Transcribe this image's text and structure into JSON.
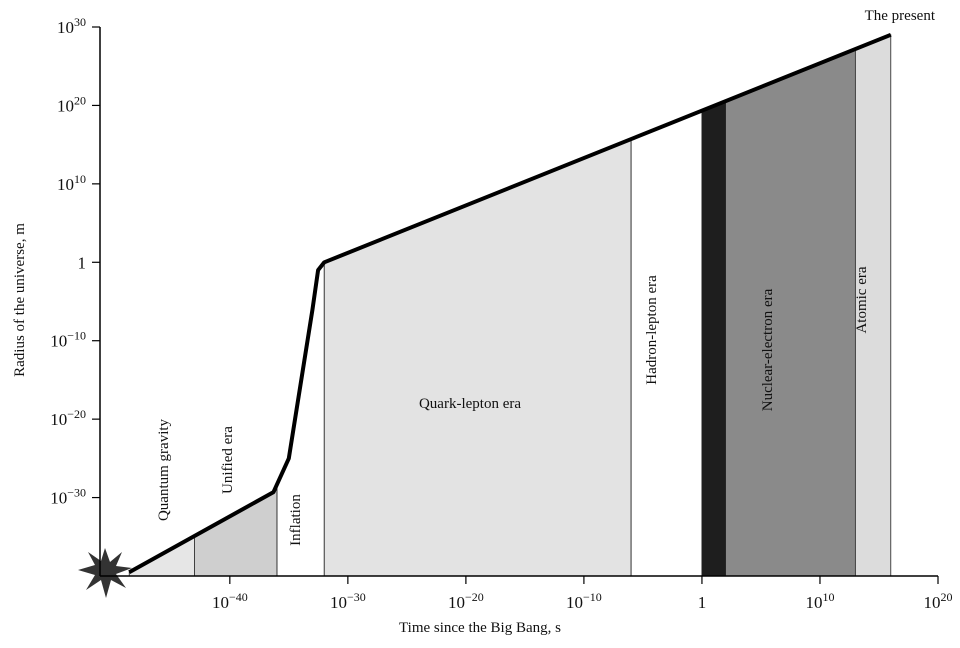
{
  "chart_data": {
    "type": "line",
    "x_label": "Time since the Big Bang, s",
    "y_label": "Radius of the universe, m",
    "annotation": "The present",
    "log_x": true,
    "log_y": true,
    "xlim": [
      1e-51,
      1e+20
    ],
    "ylim": [
      1e-40,
      1e+30
    ],
    "xticks": [
      {
        "value": 1e-40,
        "label": "10−40"
      },
      {
        "value": 1e-30,
        "label": "10−30"
      },
      {
        "value": 1e-20,
        "label": "10−20"
      },
      {
        "value": 1e-10,
        "label": "10−10"
      },
      1,
      {
        "value": 10000000000.0,
        "label": "1010"
      },
      {
        "value": 1e+20,
        "label": "1020"
      }
    ],
    "yticks": [
      {
        "value": 1e-30,
        "label": "10−30"
      },
      {
        "value": 1e-20,
        "label": "10−20"
      },
      {
        "value": 1e-10,
        "label": "10−10"
      },
      1,
      {
        "value": 10000000000.0,
        "label": "1010"
      },
      {
        "value": 1e+20,
        "label": "1020"
      },
      {
        "value": 1e+30,
        "label": "1030"
      }
    ],
    "x": [
      3e-49,
      5e-37,
      1e-35,
      1e-33,
      3e-33,
      1e-32,
      1e+16
    ],
    "series": [
      {
        "color": "#000000",
        "values": [
          3e-40,
          5e-30,
          1e-25,
          1e-06,
          0.1,
          1,
          1e+29
        ]
      }
    ],
    "eras": {
      "labels": [
        "Quantum gravity",
        "Unified era",
        "Inflation",
        "Quark-lepton era",
        "Hadron-lepton era",
        null,
        "Nuclear-electron era",
        "Atomic era"
      ],
      "bounds": [
        3e-49,
        1e-43,
        1e-36,
        1e-32,
        1e-06,
        1,
        100,
        10000000000000.0,
        1e+16
      ],
      "colors": [
        "#e6e6e6",
        "#cfcfcf",
        "#ffffff",
        "#e3e3e3",
        "#ffffff",
        "#1e1e1e",
        "#8a8a8a",
        "#dcdcdc"
      ]
    }
  }
}
